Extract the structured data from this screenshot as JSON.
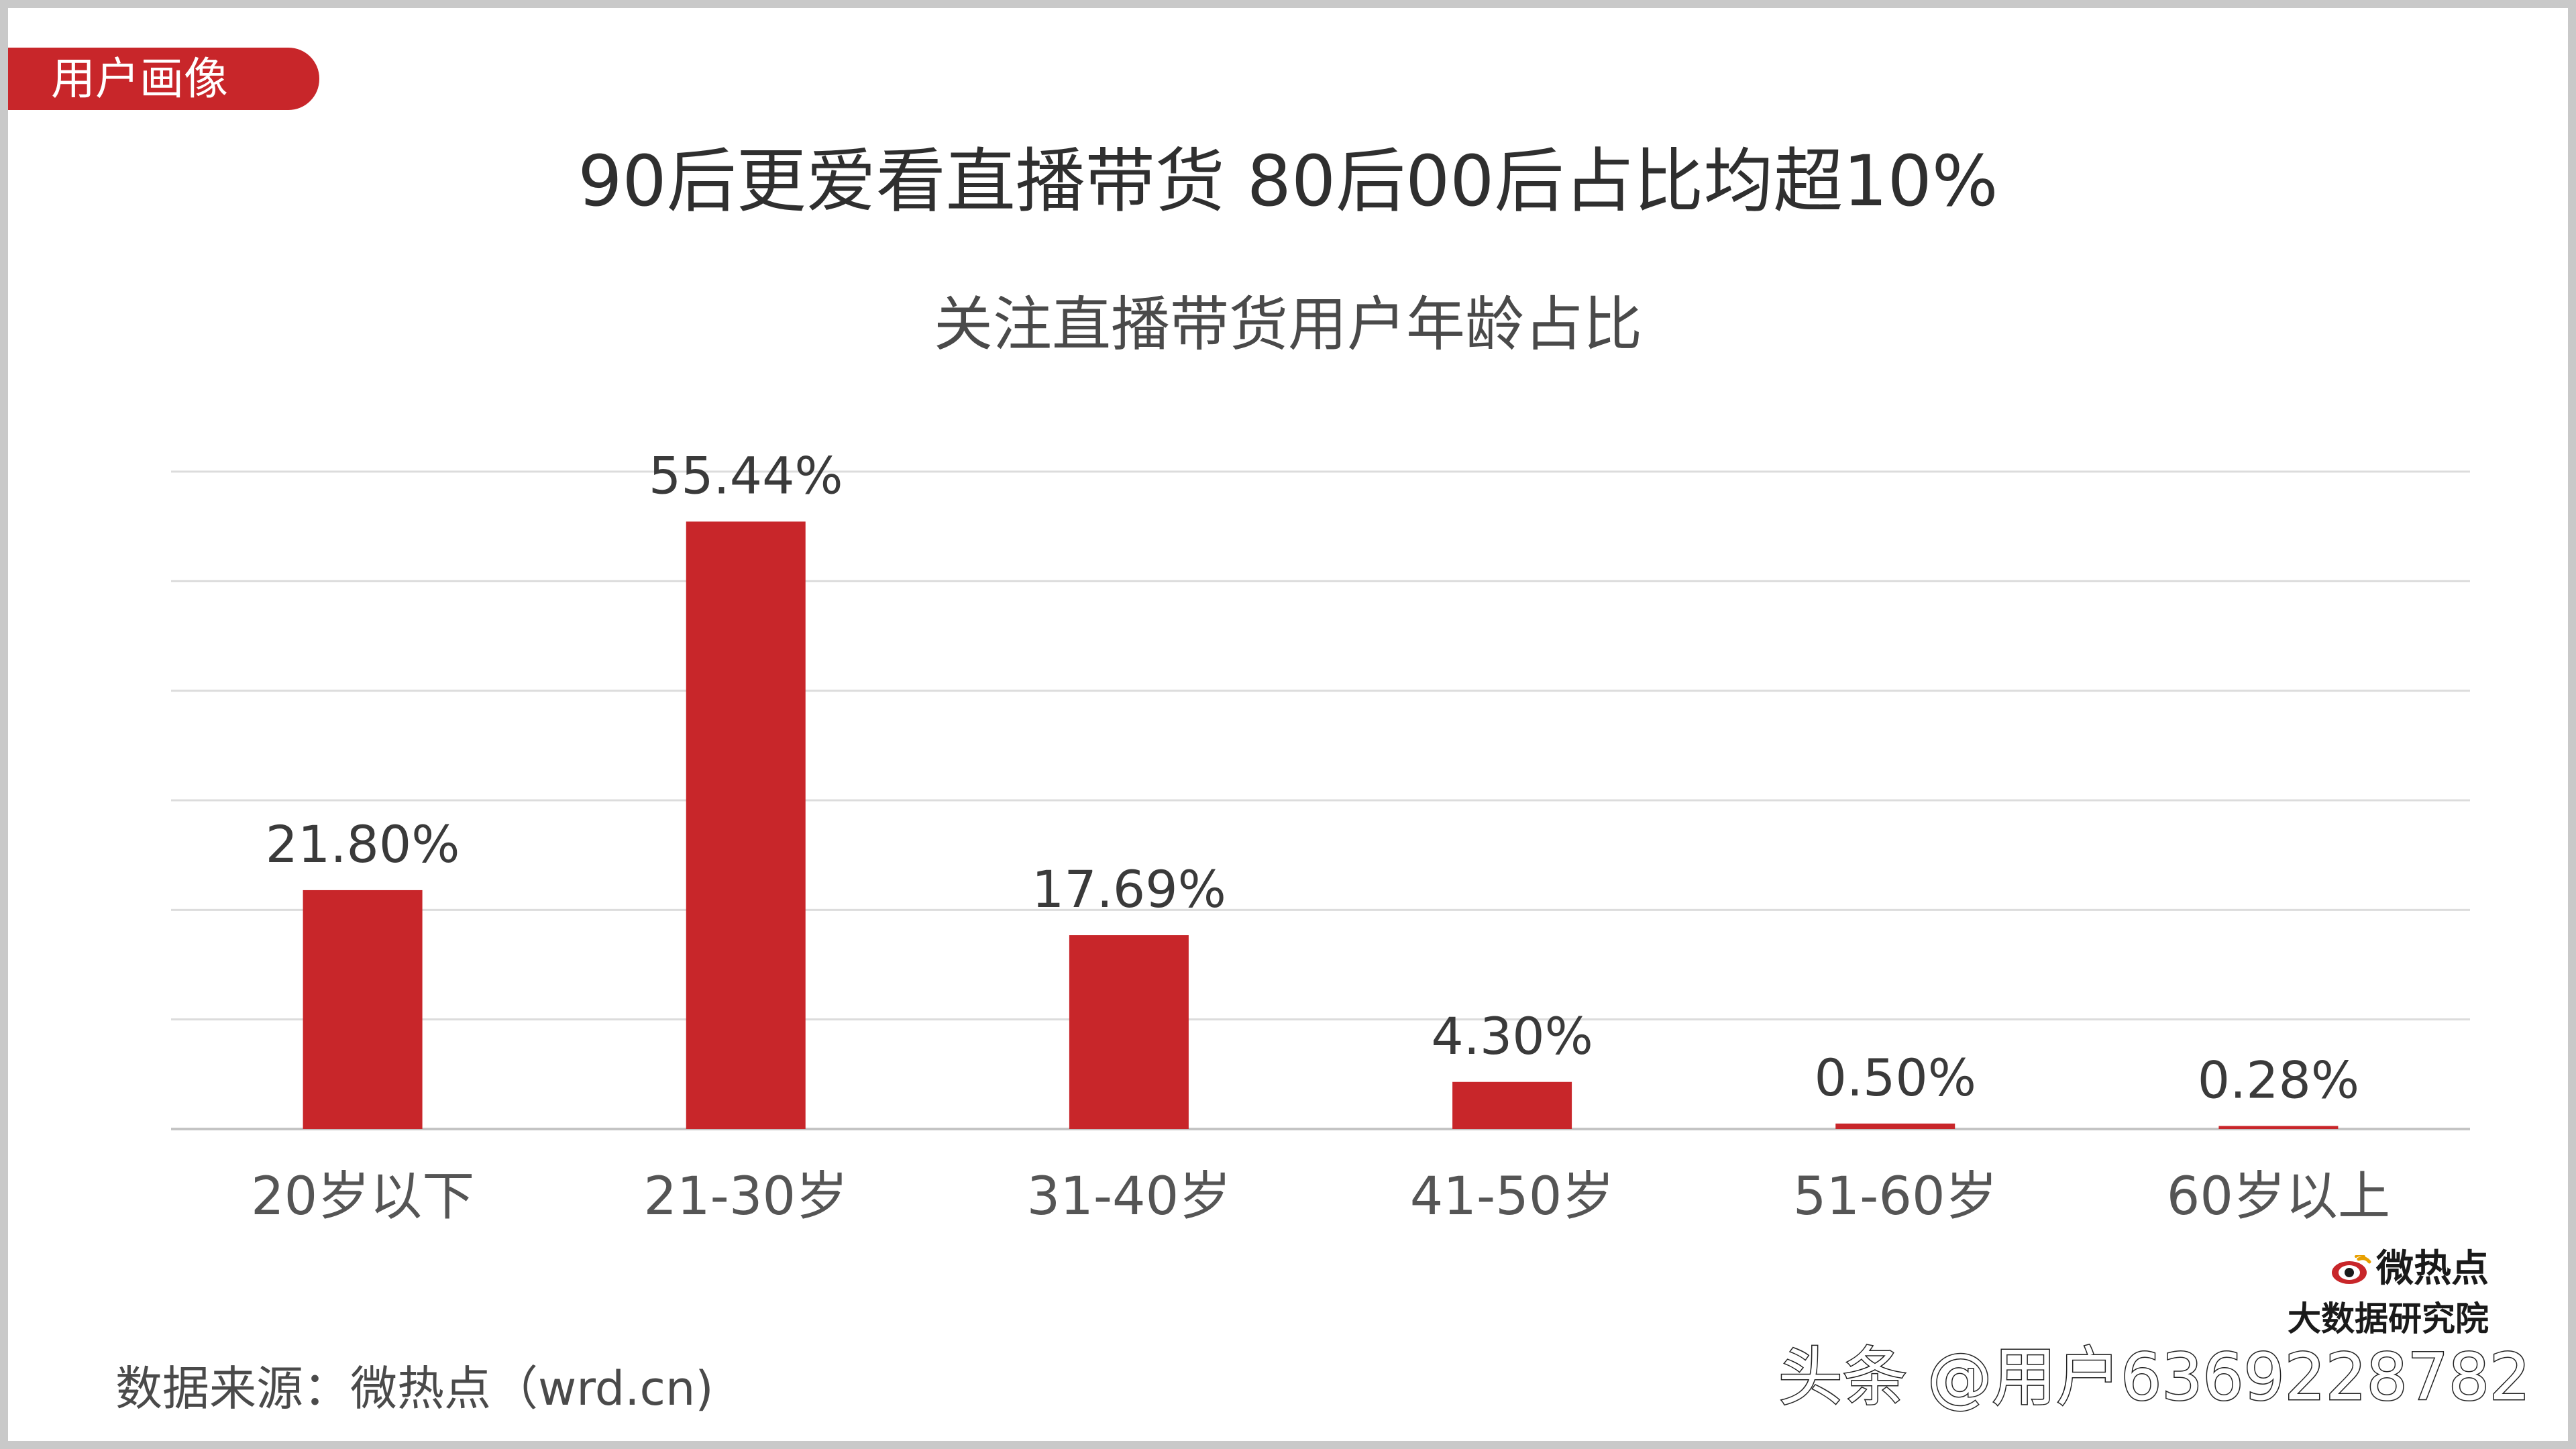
{
  "section_tag": "用户画像",
  "page_title": "90后更爱看直播带货 80后00后占比均超10%",
  "source_note": "数据来源：微热点（wrd.cn)",
  "logo": {
    "line1": "微热点",
    "line2": "大数据研究院",
    "icon": "eye-logo-icon"
  },
  "watermark": "头条 @用户6369228782",
  "colors": {
    "accent": "#c8262a",
    "gridline": "#dcdcdc",
    "text": "#3a3a3a"
  },
  "chart_data": {
    "type": "bar",
    "title": "关注直播带货用户年龄占比",
    "categories": [
      "20岁以下",
      "21-30岁",
      "31-40岁",
      "41-50岁",
      "51-60岁",
      "60岁以上"
    ],
    "values": [
      21.8,
      55.44,
      17.69,
      4.3,
      0.5,
      0.28
    ],
    "value_labels": [
      "21.80%",
      "55.44%",
      "17.69%",
      "4.30%",
      "0.50%",
      "0.28%"
    ],
    "unit": "%",
    "ylim": [
      0,
      60
    ],
    "grid": true,
    "legend": "none"
  }
}
